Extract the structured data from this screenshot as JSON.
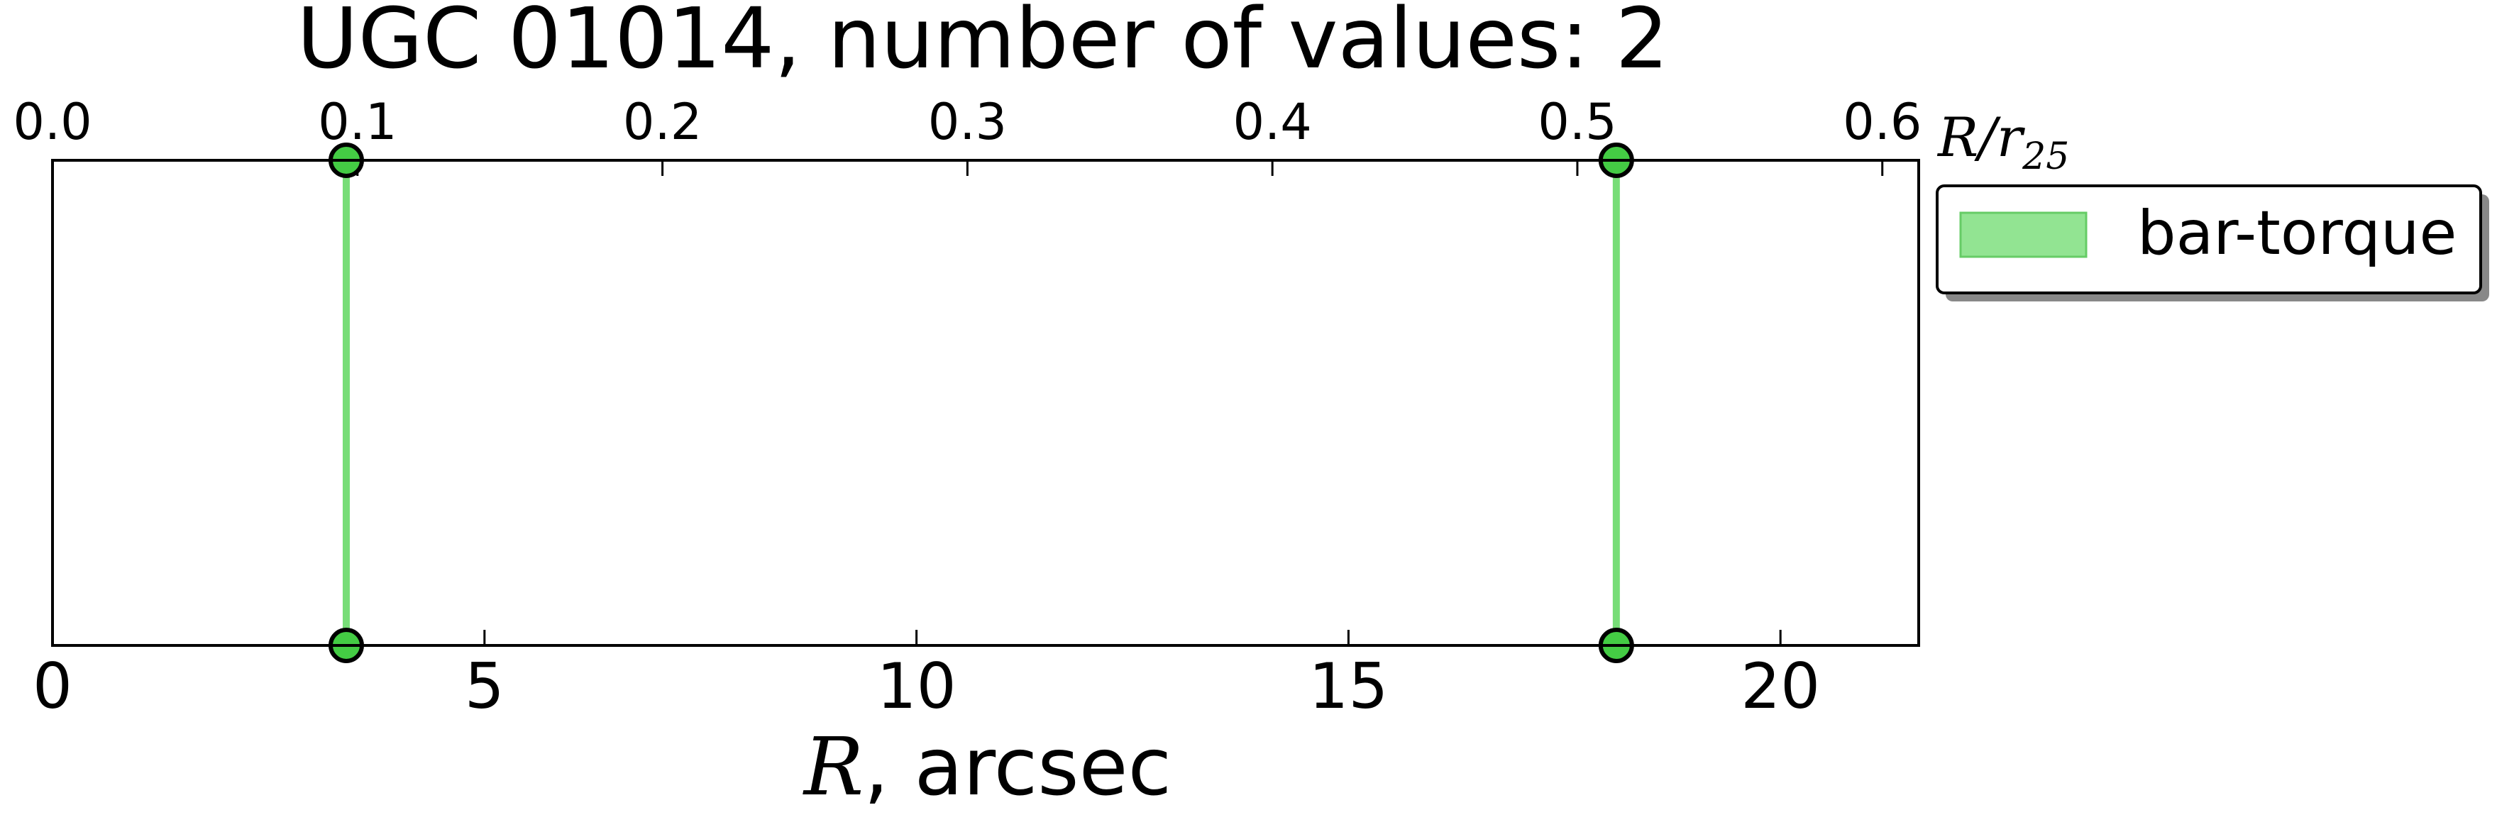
{
  "chart_data": {
    "type": "line",
    "title": "UGC 01014, number of values: 2",
    "xlabel_var": "R",
    "xlabel_rest": ", arcsec",
    "xlim": [
      0,
      21.6
    ],
    "x_ticks": [
      0,
      5,
      10,
      15,
      20
    ],
    "x_tick_labels": [
      "0",
      "5",
      "10",
      "15",
      "20"
    ],
    "top_axis": {
      "label_var": "R/r",
      "label_sub": "25",
      "ticks": [
        0.0,
        0.1,
        0.2,
        0.3,
        0.4,
        0.5,
        0.6
      ],
      "tick_labels": [
        "0.0",
        "0.1",
        "0.2",
        "0.3",
        "0.4",
        "0.5",
        "0.6"
      ],
      "ratio_per_arcsec": 0.02833
    },
    "grid": false,
    "legend_position": "outside-top-right",
    "series": [
      {
        "name": "bar-torque",
        "color": "#77dd77",
        "marker_color": "#44cc44",
        "x": [
          3.4,
          18.1
        ]
      }
    ]
  }
}
